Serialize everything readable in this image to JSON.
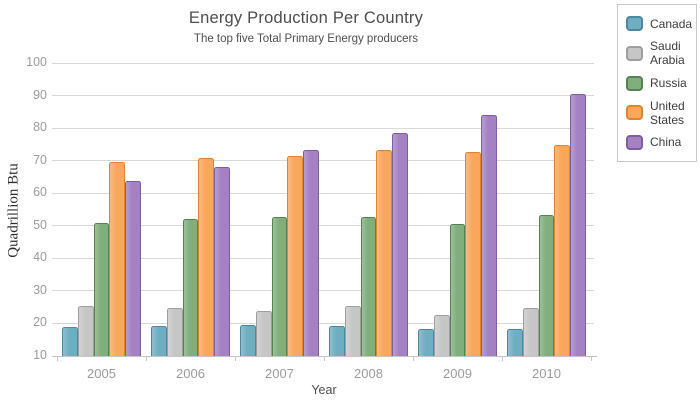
{
  "chart_data": {
    "type": "bar",
    "title": "Energy Production Per Country",
    "subtitle": "The top five Total Primary Energy producers",
    "xlabel": "Year",
    "ylabel": "Quadrillion Btu",
    "categories": [
      "2005",
      "2006",
      "2007",
      "2008",
      "2009",
      "2010"
    ],
    "series": [
      {
        "name": "Canada",
        "fill": "#6FADC1",
        "border": "#4A89A1",
        "values": [
          19.0,
          19.3,
          19.5,
          19.2,
          18.3,
          18.4
        ]
      },
      {
        "name": "Saudi Arabia",
        "fill": "#C6C6C6",
        "border": "#9E9E9E",
        "values": [
          25.4,
          24.7,
          23.7,
          25.3,
          22.6,
          24.6
        ]
      },
      {
        "name": "Russia",
        "fill": "#81AE7D",
        "border": "#568252",
        "values": [
          51.0,
          52.1,
          52.6,
          52.6,
          50.5,
          53.3
        ]
      },
      {
        "name": "United States",
        "fill": "#F9A75D",
        "border": "#E5832B",
        "values": [
          69.5,
          70.9,
          71.4,
          73.2,
          72.6,
          74.9
        ]
      },
      {
        "name": "China",
        "fill": "#A381C3",
        "border": "#7D5EA0",
        "values": [
          63.9,
          68.2,
          73.3,
          78.4,
          84.1,
          90.5
        ]
      }
    ],
    "ylim": [
      10,
      100
    ],
    "ytick_step": 10,
    "grid": true,
    "legend_position": "right",
    "colors": {
      "gridline": "#D9D9D9",
      "axis": "#C4C4C4",
      "tick_label": "#9B9B9B",
      "title": "#4D4D4D"
    }
  }
}
